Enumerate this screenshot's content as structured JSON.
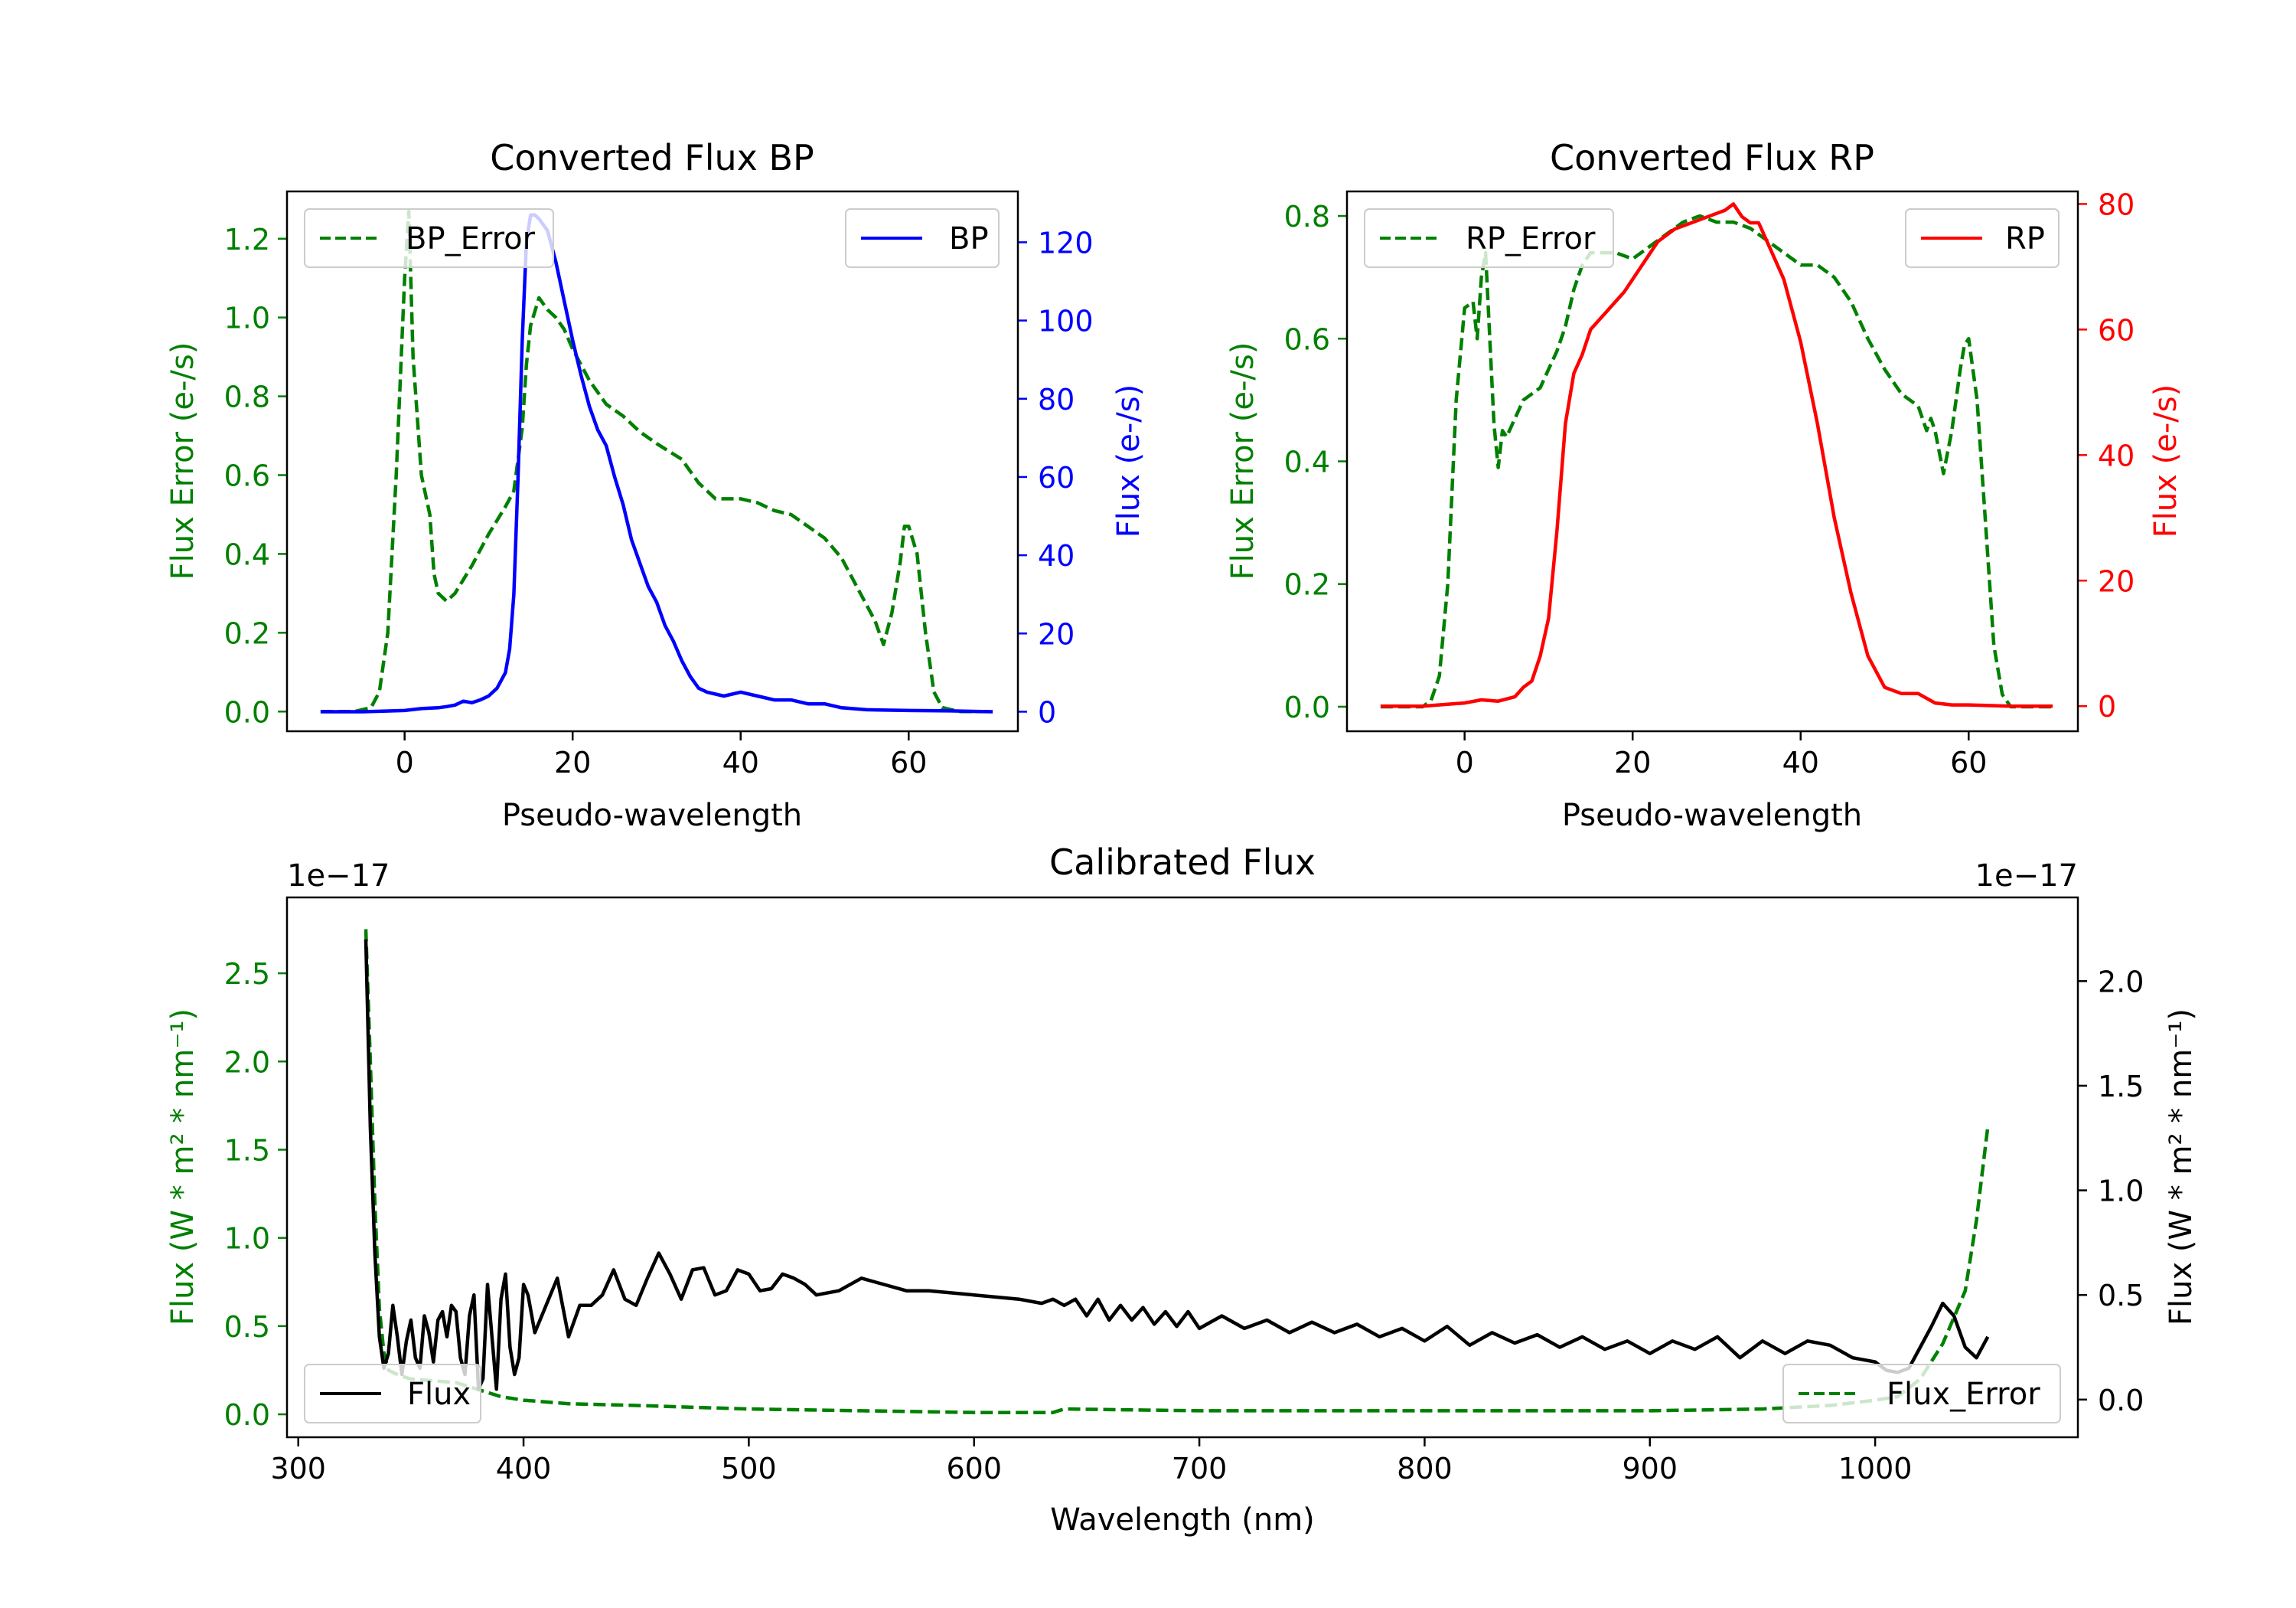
{
  "colors": {
    "green": "#008000",
    "blue": "#0000ff",
    "red": "#ff0000",
    "black": "#000000"
  },
  "chart_data": [
    {
      "id": "bp",
      "type": "line",
      "title": "Converted Flux BP",
      "xlabel": "Pseudo-wavelength",
      "ylabel_left": "Flux Error (e-/s)",
      "ylabel_right": "Flux (e-/s)",
      "xlim": [
        -14,
        73
      ],
      "ylim_left": [
        -0.05,
        1.32
      ],
      "ylim_right": [
        -5,
        133
      ],
      "xticks": [
        0,
        20,
        40,
        60
      ],
      "xtick_labels": [
        "0",
        "20",
        "40",
        "60"
      ],
      "yticks_left": [
        0.0,
        0.2,
        0.4,
        0.6,
        0.8,
        1.0,
        1.2
      ],
      "ytick_labels_left": [
        "0.0",
        "0.2",
        "0.4",
        "0.6",
        "0.8",
        "1.0",
        "1.2"
      ],
      "yticks_right": [
        0,
        20,
        40,
        60,
        80,
        100,
        120
      ],
      "ytick_labels_right": [
        "0",
        "20",
        "40",
        "60",
        "80",
        "100",
        "120"
      ],
      "legend_left": "BP_Error",
      "legend_right": "BP",
      "series": [
        {
          "name": "BP_Error",
          "axis": "left",
          "color": "#008000",
          "dash": true,
          "x": [
            -10,
            -6,
            -4,
            -3,
            -2,
            -1,
            0,
            0.5,
            1,
            2,
            3,
            3.5,
            4,
            5,
            6,
            8,
            10,
            12,
            13,
            14,
            14.5,
            15,
            16,
            17,
            18,
            19,
            20,
            22,
            24,
            26,
            28,
            30,
            33,
            34,
            35,
            36,
            37,
            38,
            40,
            42,
            44,
            46,
            48,
            50,
            52,
            54,
            56,
            57,
            58,
            59,
            59.5,
            60,
            61,
            62,
            63,
            64,
            66,
            70
          ],
          "y": [
            0,
            0,
            0.01,
            0.05,
            0.2,
            0.6,
            1.1,
            1.27,
            0.9,
            0.6,
            0.5,
            0.35,
            0.3,
            0.28,
            0.3,
            0.37,
            0.45,
            0.52,
            0.56,
            0.72,
            0.88,
            0.98,
            1.05,
            1.02,
            1.0,
            0.97,
            0.92,
            0.84,
            0.78,
            0.75,
            0.71,
            0.68,
            0.64,
            0.61,
            0.58,
            0.56,
            0.54,
            0.54,
            0.54,
            0.53,
            0.51,
            0.5,
            0.47,
            0.44,
            0.39,
            0.31,
            0.23,
            0.17,
            0.25,
            0.38,
            0.47,
            0.47,
            0.4,
            0.2,
            0.05,
            0.01,
            0,
            0
          ]
        },
        {
          "name": "BP",
          "axis": "right",
          "color": "#0000ff",
          "dash": false,
          "x": [
            -10,
            -5,
            0,
            2,
            4,
            5,
            6,
            7,
            8,
            9,
            10,
            11,
            12,
            12.5,
            13,
            13.5,
            14,
            14.5,
            15,
            15.5,
            16,
            17,
            18,
            19,
            20,
            21,
            22,
            23,
            24,
            25,
            26,
            27,
            28,
            29,
            30,
            31,
            32,
            33,
            34,
            35,
            36,
            38,
            40,
            42,
            44,
            46,
            48,
            50,
            52,
            55,
            60,
            65,
            70
          ],
          "y": [
            0,
            0,
            0.3,
            0.8,
            1,
            1.3,
            1.7,
            2.7,
            2.3,
            3,
            4,
            6,
            10,
            16,
            30,
            60,
            95,
            120,
            127,
            127,
            126,
            123,
            115,
            105,
            95,
            86,
            78,
            72,
            68,
            60,
            53,
            44,
            38,
            32,
            28,
            22,
            18,
            13,
            9,
            6,
            5,
            4,
            5,
            4,
            3,
            3,
            2,
            2,
            1,
            0.5,
            0.3,
            0.2,
            0
          ]
        }
      ]
    },
    {
      "id": "rp",
      "type": "line",
      "title": "Converted Flux RP",
      "xlabel": "Pseudo-wavelength",
      "ylabel_left": "Flux Error (e-/s)",
      "ylabel_right": "Flux (e-/s)",
      "xlim": [
        -14,
        73
      ],
      "ylim_left": [
        -0.04,
        0.84
      ],
      "ylim_right": [
        -4,
        82
      ],
      "xticks": [
        0,
        20,
        40,
        60
      ],
      "xtick_labels": [
        "0",
        "20",
        "40",
        "60"
      ],
      "yticks_left": [
        0.0,
        0.2,
        0.4,
        0.6,
        0.8
      ],
      "ytick_labels_left": [
        "0.0",
        "0.2",
        "0.4",
        "0.6",
        "0.8"
      ],
      "yticks_right": [
        0,
        20,
        40,
        60,
        80
      ],
      "yticks_labels_right": [
        "0",
        "20",
        "40",
        "60",
        "80"
      ],
      "legend_left": "RP_Error",
      "legend_right": "RP",
      "series": [
        {
          "name": "RP_Error",
          "axis": "left",
          "color": "#008000",
          "dash": true,
          "x": [
            -10,
            -5,
            -4,
            -3,
            -2,
            -1,
            0,
            1,
            1.5,
            2,
            2.5,
            3,
            3.5,
            4,
            4.5,
            5,
            6,
            7,
            8,
            9,
            10,
            11,
            12,
            13,
            14,
            15,
            16,
            18,
            20,
            22,
            24,
            25,
            26,
            28,
            30,
            32,
            34,
            36,
            38,
            40,
            42,
            44,
            46,
            48,
            50,
            52,
            54,
            55,
            55.5,
            56,
            57,
            58,
            59,
            59.5,
            60,
            61,
            62,
            63,
            64,
            65,
            70
          ],
          "y": [
            0,
            0,
            0.01,
            0.05,
            0.2,
            0.5,
            0.65,
            0.66,
            0.6,
            0.7,
            0.74,
            0.6,
            0.46,
            0.39,
            0.45,
            0.44,
            0.47,
            0.5,
            0.51,
            0.52,
            0.55,
            0.58,
            0.62,
            0.68,
            0.72,
            0.74,
            0.74,
            0.74,
            0.73,
            0.75,
            0.77,
            0.78,
            0.79,
            0.8,
            0.79,
            0.79,
            0.78,
            0.76,
            0.74,
            0.72,
            0.72,
            0.7,
            0.66,
            0.6,
            0.55,
            0.51,
            0.49,
            0.45,
            0.47,
            0.45,
            0.38,
            0.45,
            0.55,
            0.59,
            0.6,
            0.5,
            0.3,
            0.1,
            0.02,
            0,
            0
          ]
        },
        {
          "name": "RP",
          "axis": "right",
          "color": "#ff0000",
          "dash": false,
          "x": [
            -10,
            -5,
            0,
            2,
            4,
            6,
            7,
            8,
            9,
            10,
            11,
            12,
            13,
            14,
            15,
            17,
            19,
            21,
            23,
            25,
            27,
            29,
            31,
            32,
            33,
            34,
            35,
            36,
            38,
            40,
            42,
            44,
            46,
            48,
            50,
            52,
            54,
            56,
            58,
            60,
            65,
            70
          ],
          "y": [
            0,
            0,
            0.5,
            1,
            0.8,
            1.5,
            3,
            4,
            8,
            14,
            28,
            45,
            53,
            56,
            60,
            63,
            66,
            70,
            74,
            76,
            77,
            78,
            79,
            80,
            78,
            77,
            77,
            74,
            68,
            58,
            45,
            30,
            18,
            8,
            3,
            2,
            2,
            0.5,
            0.2,
            0.2,
            0,
            0
          ]
        }
      ]
    },
    {
      "id": "calibrated",
      "type": "line",
      "title": "Calibrated Flux",
      "xlabel": "Wavelength (nm)",
      "ylabel_left": "Flux (W * m² * nm⁻¹)",
      "ylabel_right": "Flux (W * m² * nm⁻¹)",
      "offset_left": "1e−17",
      "offset_right": "1e−17",
      "xlim": [
        295,
        1090
      ],
      "ylim_left": [
        -0.13,
        2.93
      ],
      "ylim_right": [
        -0.18,
        2.4
      ],
      "xticks": [
        300,
        400,
        500,
        600,
        700,
        800,
        900,
        1000
      ],
      "xtick_labels": [
        "300",
        "400",
        "500",
        "600",
        "700",
        "800",
        "900",
        "1000"
      ],
      "yticks_left": [
        0.0,
        0.5,
        1.0,
        1.5,
        2.0,
        2.5
      ],
      "ytick_labels_left": [
        "0.0",
        "0.5",
        "1.0",
        "1.5",
        "2.0",
        "2.5"
      ],
      "yticks_right": [
        0.0,
        0.5,
        1.0,
        1.5,
        2.0
      ],
      "ytick_labels_right": [
        "0.0",
        "0.5",
        "1.0",
        "1.5",
        "2.0"
      ],
      "legend_left": "Flux",
      "legend_right": "Flux_Error",
      "series": [
        {
          "name": "Flux_Error",
          "axis": "left",
          "color": "#008000",
          "dash": true,
          "x": [
            330,
            332,
            334,
            336,
            338,
            340,
            345,
            350,
            360,
            370,
            380,
            390,
            400,
            420,
            450,
            500,
            550,
            600,
            635,
            640,
            700,
            800,
            900,
            950,
            980,
            1000,
            1010,
            1020,
            1030,
            1040,
            1045,
            1050
          ],
          "y": [
            2.75,
            2.0,
            1.2,
            0.6,
            0.35,
            0.25,
            0.22,
            0.2,
            0.19,
            0.18,
            0.14,
            0.1,
            0.08,
            0.06,
            0.05,
            0.03,
            0.02,
            0.01,
            0.01,
            0.03,
            0.02,
            0.02,
            0.02,
            0.03,
            0.05,
            0.08,
            0.1,
            0.2,
            0.4,
            0.7,
            1.1,
            1.63
          ]
        },
        {
          "name": "Flux",
          "axis": "right",
          "color": "#000000",
          "dash": false,
          "x": [
            330,
            332,
            334,
            336,
            338,
            340,
            342,
            344,
            346,
            348,
            350,
            352,
            354,
            356,
            358,
            360,
            362,
            364,
            366,
            368,
            370,
            372,
            374,
            376,
            378,
            380,
            382,
            384,
            386,
            388,
            390,
            392,
            394,
            396,
            398,
            400,
            402,
            405,
            410,
            415,
            420,
            425,
            430,
            435,
            440,
            445,
            450,
            455,
            460,
            465,
            470,
            475,
            480,
            485,
            490,
            495,
            500,
            505,
            510,
            515,
            520,
            525,
            530,
            540,
            550,
            560,
            570,
            580,
            600,
            620,
            630,
            635,
            640,
            645,
            650,
            655,
            660,
            665,
            670,
            675,
            680,
            685,
            690,
            695,
            700,
            710,
            720,
            730,
            740,
            750,
            760,
            770,
            780,
            790,
            800,
            810,
            820,
            830,
            840,
            850,
            860,
            870,
            880,
            890,
            900,
            910,
            920,
            930,
            940,
            950,
            960,
            970,
            980,
            990,
            1000,
            1005,
            1010,
            1015,
            1020,
            1025,
            1030,
            1035,
            1040,
            1045,
            1050
          ],
          "y": [
            2.2,
            1.3,
            0.7,
            0.3,
            0.15,
            0.22,
            0.45,
            0.3,
            0.12,
            0.28,
            0.38,
            0.2,
            0.15,
            0.4,
            0.32,
            0.18,
            0.38,
            0.42,
            0.3,
            0.45,
            0.42,
            0.2,
            0.12,
            0.4,
            0.5,
            0.05,
            0.1,
            0.55,
            0.3,
            0.05,
            0.48,
            0.6,
            0.25,
            0.12,
            0.2,
            0.55,
            0.5,
            0.32,
            0.45,
            0.58,
            0.3,
            0.45,
            0.45,
            0.5,
            0.62,
            0.48,
            0.45,
            0.58,
            0.7,
            0.6,
            0.48,
            0.62,
            0.63,
            0.5,
            0.52,
            0.62,
            0.6,
            0.52,
            0.53,
            0.6,
            0.58,
            0.55,
            0.5,
            0.52,
            0.58,
            0.55,
            0.52,
            0.52,
            0.5,
            0.48,
            0.46,
            0.48,
            0.45,
            0.48,
            0.4,
            0.48,
            0.38,
            0.45,
            0.38,
            0.44,
            0.36,
            0.42,
            0.35,
            0.42,
            0.34,
            0.4,
            0.34,
            0.38,
            0.32,
            0.37,
            0.32,
            0.36,
            0.3,
            0.34,
            0.28,
            0.35,
            0.26,
            0.32,
            0.27,
            0.31,
            0.25,
            0.3,
            0.24,
            0.28,
            0.22,
            0.28,
            0.24,
            0.3,
            0.2,
            0.28,
            0.22,
            0.28,
            0.26,
            0.2,
            0.18,
            0.14,
            0.13,
            0.15,
            0.25,
            0.35,
            0.46,
            0.4,
            0.25,
            0.2,
            0.3
          ]
        }
      ]
    }
  ]
}
